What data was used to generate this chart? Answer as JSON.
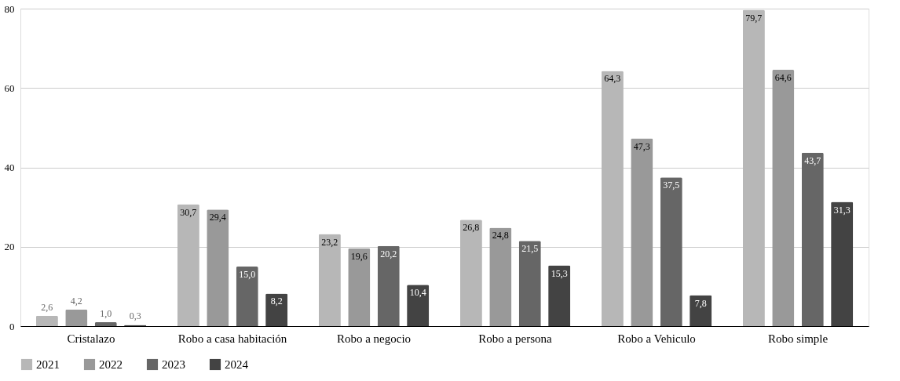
{
  "chart_data": {
    "type": "bar",
    "categories": [
      "Cristalazo",
      "Robo a casa habitación",
      "Robo a negocio",
      "Robo a persona",
      "Robo a Vehiculo",
      "Robo simple"
    ],
    "series": [
      {
        "name": "2021",
        "color": "#b7b7b7",
        "values": [
          2.6,
          30.7,
          23.2,
          26.8,
          64.3,
          79.7
        ],
        "value_labels": [
          "2,6",
          "30,7",
          "23,2",
          "26,8",
          "64,3",
          "79,7"
        ]
      },
      {
        "name": "2022",
        "color": "#999999",
        "values": [
          4.2,
          29.4,
          19.6,
          24.8,
          47.3,
          64.6
        ],
        "value_labels": [
          "4,2",
          "29,4",
          "19,6",
          "24,8",
          "47,3",
          "64,6"
        ]
      },
      {
        "name": "2023",
        "color": "#666666",
        "values": [
          1.0,
          15.0,
          20.2,
          21.5,
          37.5,
          43.7
        ],
        "value_labels": [
          "1,0",
          "15,0",
          "20,2",
          "21,5",
          "37,5",
          "43,7"
        ]
      },
      {
        "name": "2024",
        "color": "#434343",
        "values": [
          0.3,
          8.2,
          10.4,
          15.3,
          7.8,
          31.3
        ],
        "value_labels": [
          "0,3",
          "8,2",
          "10,4",
          "15,3",
          "7,8",
          "31,3"
        ]
      }
    ],
    "ylim": [
      0,
      80
    ],
    "yticks": [
      0,
      20,
      40,
      60,
      80
    ],
    "grid": "y",
    "legend": "bottom"
  }
}
